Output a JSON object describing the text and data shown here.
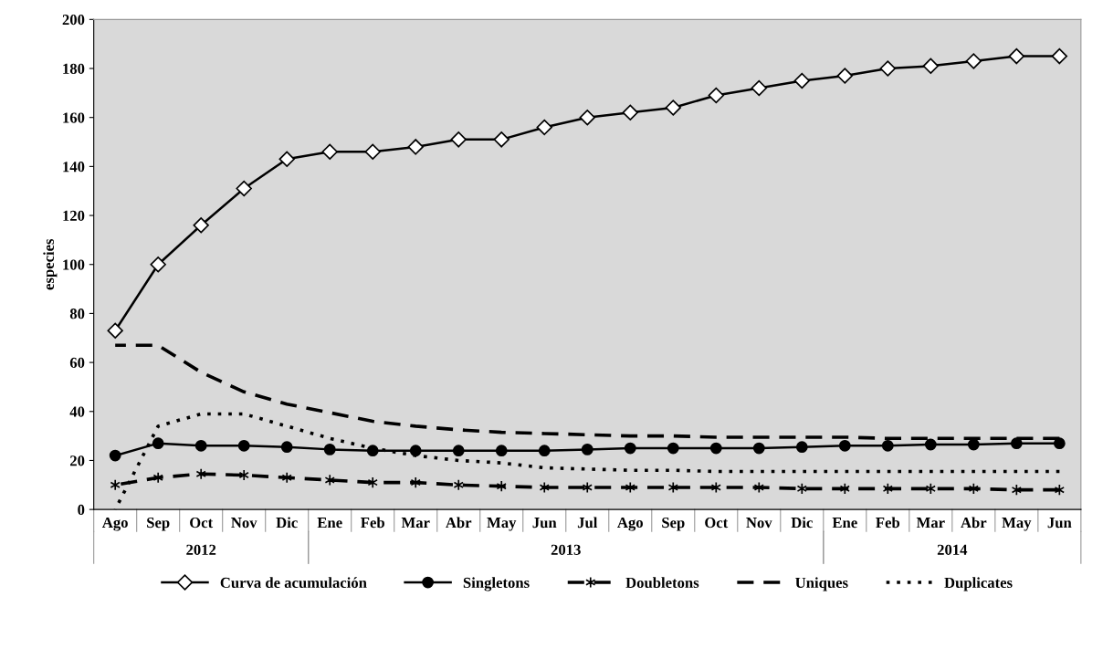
{
  "chart_data": {
    "type": "line",
    "ylabel": "especies",
    "categories": [
      "Ago",
      "Sep",
      "Oct",
      "Nov",
      "Dic",
      "Ene",
      "Feb",
      "Mar",
      "Abr",
      "May",
      "Jun",
      "Jul",
      "Ago",
      "Sep",
      "Oct",
      "Nov",
      "Dic",
      "Ene",
      "Feb",
      "Mar",
      "Abr",
      "May",
      "Jun"
    ],
    "annotations": [
      "2012",
      "2013",
      "2014"
    ],
    "ylim": [
      0,
      200
    ],
    "yticks": [
      0,
      20,
      40,
      60,
      80,
      100,
      120,
      140,
      160,
      180,
      200
    ],
    "legend": "bottom",
    "series": [
      {
        "name": "Curva de acumulación",
        "color": "#000000",
        "marker": "diamond",
        "line_style": "solid",
        "values": [
          73,
          100,
          116,
          131,
          143,
          146,
          146,
          148,
          151,
          151,
          156,
          160,
          162,
          164,
          169,
          172,
          175,
          177,
          180,
          181,
          183,
          185,
          185
        ]
      },
      {
        "name": "Singletons",
        "color": "#000000",
        "marker": "circle",
        "line_style": "solid",
        "values": [
          22,
          27,
          26,
          26,
          25.5,
          24.5,
          24,
          24,
          24,
          24,
          24,
          24.5,
          25,
          25,
          25,
          25,
          25.5,
          26,
          26,
          26.5,
          26.5,
          27,
          27
        ]
      },
      {
        "name": "Doubletons",
        "color": "#000000",
        "marker": "cross",
        "line_style": "dashed",
        "values": [
          10,
          13,
          14.5,
          14,
          13,
          12,
          11,
          11,
          10,
          9.5,
          9,
          9,
          9,
          9,
          9,
          9,
          8.5,
          8.5,
          8.5,
          8.5,
          8.5,
          8,
          8
        ]
      },
      {
        "name": "Uniques",
        "color": "#000000",
        "marker": "none",
        "line_style": "dashed",
        "values": [
          67,
          67,
          56,
          48,
          43,
          39.5,
          36,
          34,
          32.5,
          31.5,
          31,
          30.5,
          30,
          30,
          29.5,
          29.5,
          29.5,
          29.5,
          29,
          29,
          29,
          29,
          29
        ]
      },
      {
        "name": "Duplicates",
        "color": "#000000",
        "marker": "none",
        "line_style": "dotted",
        "values": [
          0,
          34,
          39,
          39,
          34,
          29,
          25,
          22,
          20,
          19,
          17,
          16.5,
          16,
          16,
          15.5,
          15.5,
          15.5,
          15.5,
          15.5,
          15.5,
          15.5,
          15.5,
          15.5
        ]
      }
    ]
  }
}
